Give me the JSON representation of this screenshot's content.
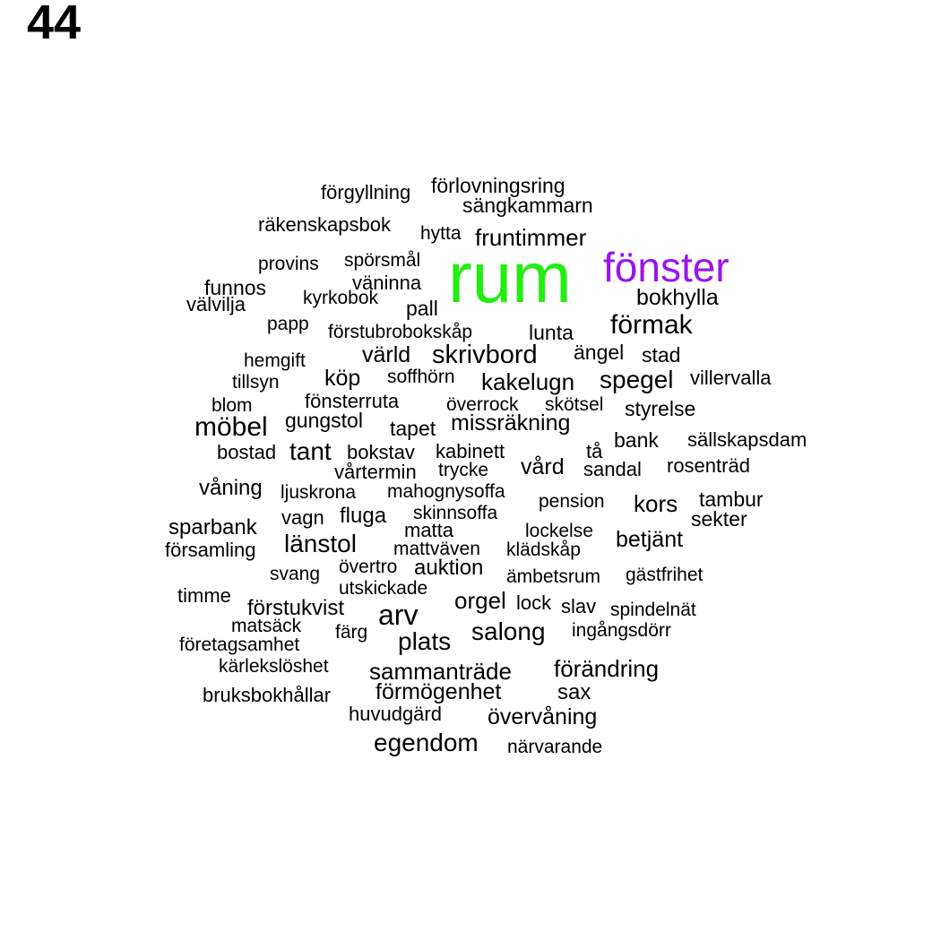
{
  "figure_number": "44",
  "colors": {
    "default": "#000000",
    "rum": "#22ee11",
    "fönster": "#9a14ee"
  },
  "words": [
    {
      "text": "förgyllning"
    },
    {
      "text": "förlovningsring"
    },
    {
      "text": "sängkammarn"
    },
    {
      "text": "räkenskapsbok"
    },
    {
      "text": "hytta"
    },
    {
      "text": "fruntimmer"
    },
    {
      "text": "rum"
    },
    {
      "text": "fönster"
    },
    {
      "text": "provins"
    },
    {
      "text": "spörsmål"
    },
    {
      "text": "funnos"
    },
    {
      "text": "väninna"
    },
    {
      "text": "välvilja"
    },
    {
      "text": "kyrkobok"
    },
    {
      "text": "pall"
    },
    {
      "text": "bokhylla"
    },
    {
      "text": "papp"
    },
    {
      "text": "förstubrobokskåp"
    },
    {
      "text": "lunta"
    },
    {
      "text": "förmak"
    },
    {
      "text": "hemgift"
    },
    {
      "text": "värld"
    },
    {
      "text": "skrivbord"
    },
    {
      "text": "ängel"
    },
    {
      "text": "stad"
    },
    {
      "text": "tillsyn"
    },
    {
      "text": "köp"
    },
    {
      "text": "soffhörn"
    },
    {
      "text": "kakelugn"
    },
    {
      "text": "spegel"
    },
    {
      "text": "villervalla"
    },
    {
      "text": "blom"
    },
    {
      "text": "fönsterruta"
    },
    {
      "text": "överrock"
    },
    {
      "text": "skötsel"
    },
    {
      "text": "styrelse"
    },
    {
      "text": "möbel"
    },
    {
      "text": "gungstol"
    },
    {
      "text": "tapet"
    },
    {
      "text": "missräkning"
    },
    {
      "text": "bostad"
    },
    {
      "text": "tant"
    },
    {
      "text": "bokstav"
    },
    {
      "text": "kabinett"
    },
    {
      "text": "tå"
    },
    {
      "text": "bank"
    },
    {
      "text": "sällskapsdam"
    },
    {
      "text": "vårtermin"
    },
    {
      "text": "trycke"
    },
    {
      "text": "vård"
    },
    {
      "text": "sandal"
    },
    {
      "text": "rosenträd"
    },
    {
      "text": "våning"
    },
    {
      "text": "ljuskrona"
    },
    {
      "text": "mahognysoffa"
    },
    {
      "text": "pension"
    },
    {
      "text": "kors"
    },
    {
      "text": "tambur"
    },
    {
      "text": "vagn"
    },
    {
      "text": "fluga"
    },
    {
      "text": "skinnsoffa"
    },
    {
      "text": "sekter"
    },
    {
      "text": "sparbank"
    },
    {
      "text": "matta"
    },
    {
      "text": "lockelse"
    },
    {
      "text": "betjänt"
    },
    {
      "text": "församling"
    },
    {
      "text": "länstol"
    },
    {
      "text": "mattväven"
    },
    {
      "text": "klädskåp"
    },
    {
      "text": "övertro"
    },
    {
      "text": "svang"
    },
    {
      "text": "auktion"
    },
    {
      "text": "ämbetsrum"
    },
    {
      "text": "gästfrihet"
    },
    {
      "text": "utskickade"
    },
    {
      "text": "timme"
    },
    {
      "text": "orgel"
    },
    {
      "text": "lock"
    },
    {
      "text": "slav"
    },
    {
      "text": "spindelnät"
    },
    {
      "text": "förstukvist"
    },
    {
      "text": "arv"
    },
    {
      "text": "matsäck"
    },
    {
      "text": "färg"
    },
    {
      "text": "salong"
    },
    {
      "text": "ingångsdörr"
    },
    {
      "text": "företagsamhet"
    },
    {
      "text": "plats"
    },
    {
      "text": "kärlekslöshet"
    },
    {
      "text": "sammanträde"
    },
    {
      "text": "förändring"
    },
    {
      "text": "bruksbokhållar"
    },
    {
      "text": "förmögenhet"
    },
    {
      "text": "sax"
    },
    {
      "text": "huvudgärd"
    },
    {
      "text": "övervåning"
    },
    {
      "text": "egendom"
    },
    {
      "text": "närvarande"
    }
  ]
}
